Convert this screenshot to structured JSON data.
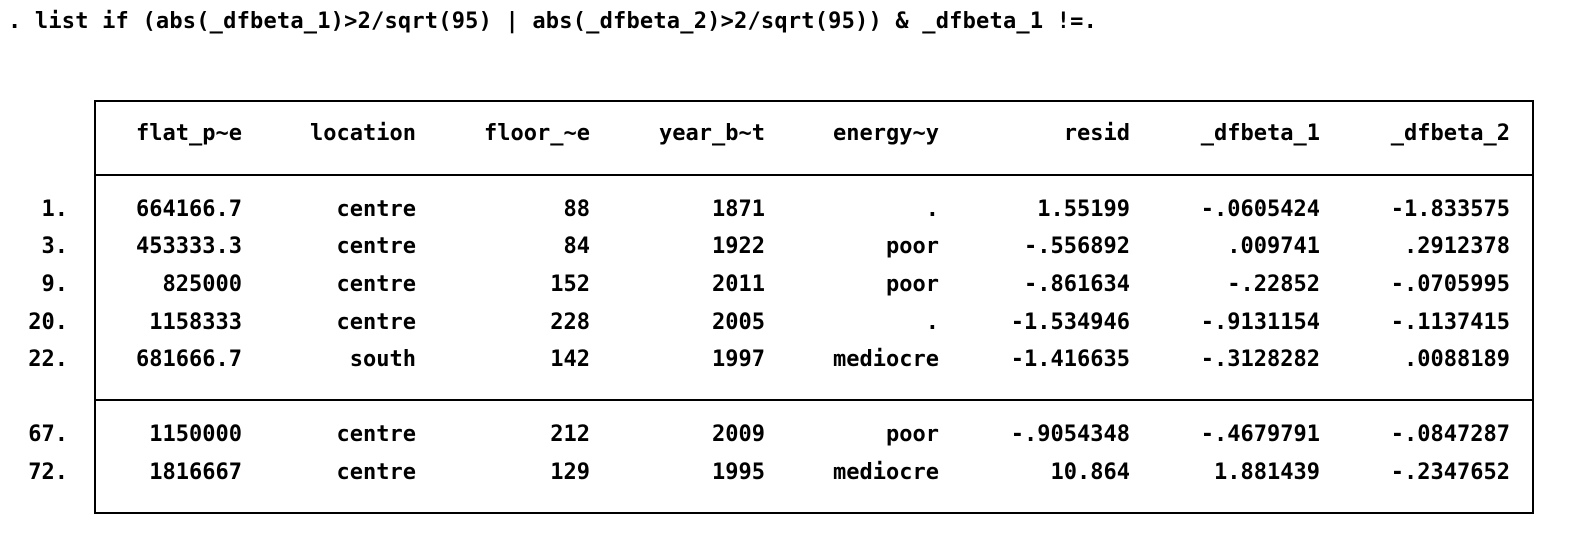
{
  "command": ". list if (abs(_dfbeta_1)>2/sqrt(95) | abs(_dfbeta_2)>2/sqrt(95)) & _dfbeta_1 !=.",
  "table": {
    "headers": [
      "flat_p~e",
      "location",
      "floor_~e",
      "year_b~t",
      "energy~y",
      "resid",
      "_dfbeta_1",
      "_dfbeta_2"
    ],
    "rows": [
      {
        "n": "1.",
        "cells": [
          "664166.7",
          "centre",
          "88",
          "1871",
          ".",
          "1.55199",
          "-.0605424",
          "-1.833575"
        ]
      },
      {
        "n": "3.",
        "cells": [
          "453333.3",
          "centre",
          "84",
          "1922",
          "poor",
          "-.556892",
          ".009741",
          ".2912378"
        ]
      },
      {
        "n": "9.",
        "cells": [
          "825000",
          "centre",
          "152",
          "2011",
          "poor",
          "-.861634",
          "-.22852",
          "-.0705995"
        ]
      },
      {
        "n": "20.",
        "cells": [
          "1158333",
          "centre",
          "228",
          "2005",
          ".",
          "-1.534946",
          "-.9131154",
          "-.1137415"
        ]
      },
      {
        "n": "22.",
        "cells": [
          "681666.7",
          "south",
          "142",
          "1997",
          "mediocre",
          "-1.416635",
          "-.3128282",
          ".0088189"
        ]
      },
      {
        "n": "67.",
        "cells": [
          "1150000",
          "centre",
          "212",
          "2009",
          "poor",
          "-.9054348",
          "-.4679791",
          "-.0847287"
        ]
      },
      {
        "n": "72.",
        "cells": [
          "1816667",
          "centre",
          "129",
          "1995",
          "mediocre",
          "10.864",
          "1.881439",
          "-.2347652"
        ]
      }
    ]
  }
}
